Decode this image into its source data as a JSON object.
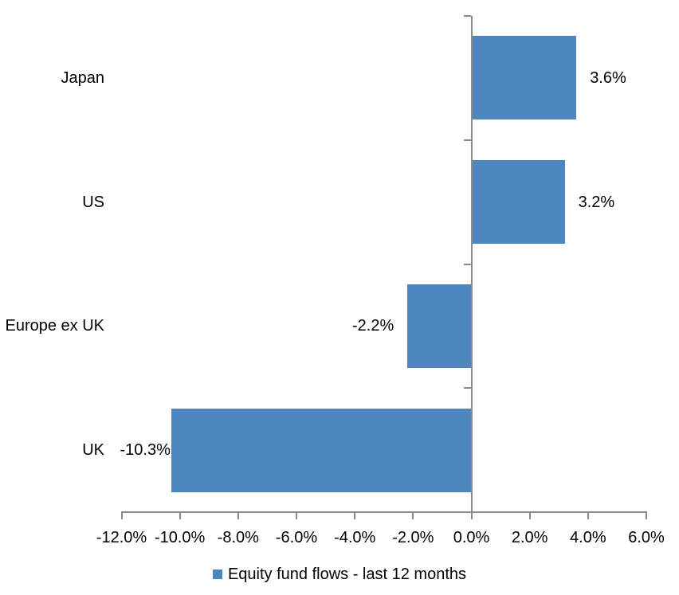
{
  "chart_data": {
    "type": "bar",
    "orientation": "horizontal",
    "title": "",
    "categories": [
      "Japan",
      "US",
      "Europe ex UK",
      "UK"
    ],
    "series": [
      {
        "name": "Equity fund flows - last 12 months",
        "values": [
          3.6,
          3.2,
          -2.2,
          -10.3
        ],
        "value_labels": [
          "3.6%",
          "3.2%",
          "-2.2%",
          "-10.3%"
        ]
      }
    ],
    "xlim": [
      -12,
      6
    ],
    "x_ticks": [
      -12,
      -10,
      -8,
      -6,
      -4,
      -2,
      0,
      2,
      4,
      6
    ],
    "x_tick_labels": [
      "-12.0%",
      "-10.0%",
      "-8.0%",
      "-6.0%",
      "-4.0%",
      "-2.0%",
      "0.0%",
      "2.0%",
      "4.0%",
      "6.0%"
    ],
    "grid": false,
    "legend_position": "bottom",
    "value_label_position": "outside-end",
    "colors": {
      "bar": "#4E87C0",
      "axis": "#8A8A8A",
      "text": "#000000",
      "background": "#FFFFFF"
    }
  },
  "legend": {
    "label": "Equity fund flows - last 12 months"
  }
}
